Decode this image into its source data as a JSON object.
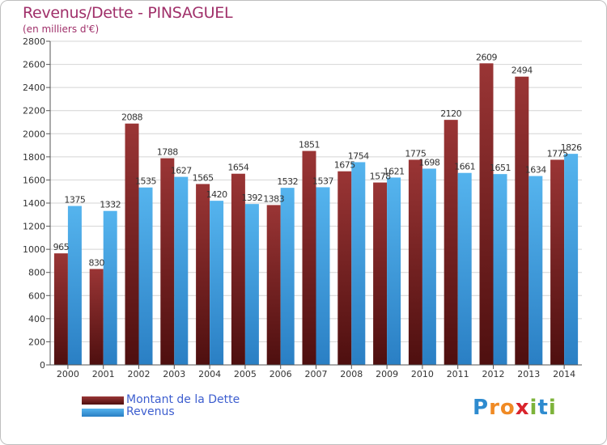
{
  "title": "Revenus/Dette - PINSAGUEL",
  "subtitle": "(en milliers d'€)",
  "logo": {
    "text": "Proxiti",
    "letters": [
      {
        "ch": "P",
        "color": "#2e8bcf"
      },
      {
        "ch": "r",
        "color": "#f08a24"
      },
      {
        "ch": "o",
        "color": "#f08a24"
      },
      {
        "ch": "x",
        "color": "#d9242c"
      },
      {
        "ch": "i",
        "color": "#7db33a"
      },
      {
        "ch": "t",
        "color": "#2e8bcf"
      },
      {
        "ch": "i",
        "color": "#7db33a"
      }
    ]
  },
  "colors": {
    "dette": "#8b2a2a",
    "revenus": "#4aa6e6",
    "grid": "#d4d4d4",
    "axis": "#555555",
    "text": "#333333"
  },
  "chart_data": {
    "type": "bar",
    "categories": [
      "2000",
      "2001",
      "2002",
      "2003",
      "2004",
      "2005",
      "2006",
      "2007",
      "2008",
      "2009",
      "2010",
      "2011",
      "2012",
      "2013",
      "2014"
    ],
    "series": [
      {
        "name": "Montant de la Dette",
        "values": [
          965,
          830,
          2088,
          1788,
          1565,
          1654,
          1383,
          1851,
          1675,
          1578,
          1775,
          2120,
          2609,
          2494,
          1775
        ]
      },
      {
        "name": "Revenus",
        "values": [
          1375,
          1332,
          1535,
          1627,
          1420,
          1392,
          1532,
          1537,
          1754,
          1621,
          1698,
          1661,
          1651,
          1634,
          1826
        ]
      }
    ],
    "ylim": [
      0,
      2800
    ],
    "yticks": [
      0,
      200,
      400,
      600,
      800,
      1000,
      1200,
      1400,
      1600,
      1800,
      2000,
      2200,
      2400,
      2600,
      2800
    ],
    "grid": true,
    "legend_position": "bottom-left"
  }
}
